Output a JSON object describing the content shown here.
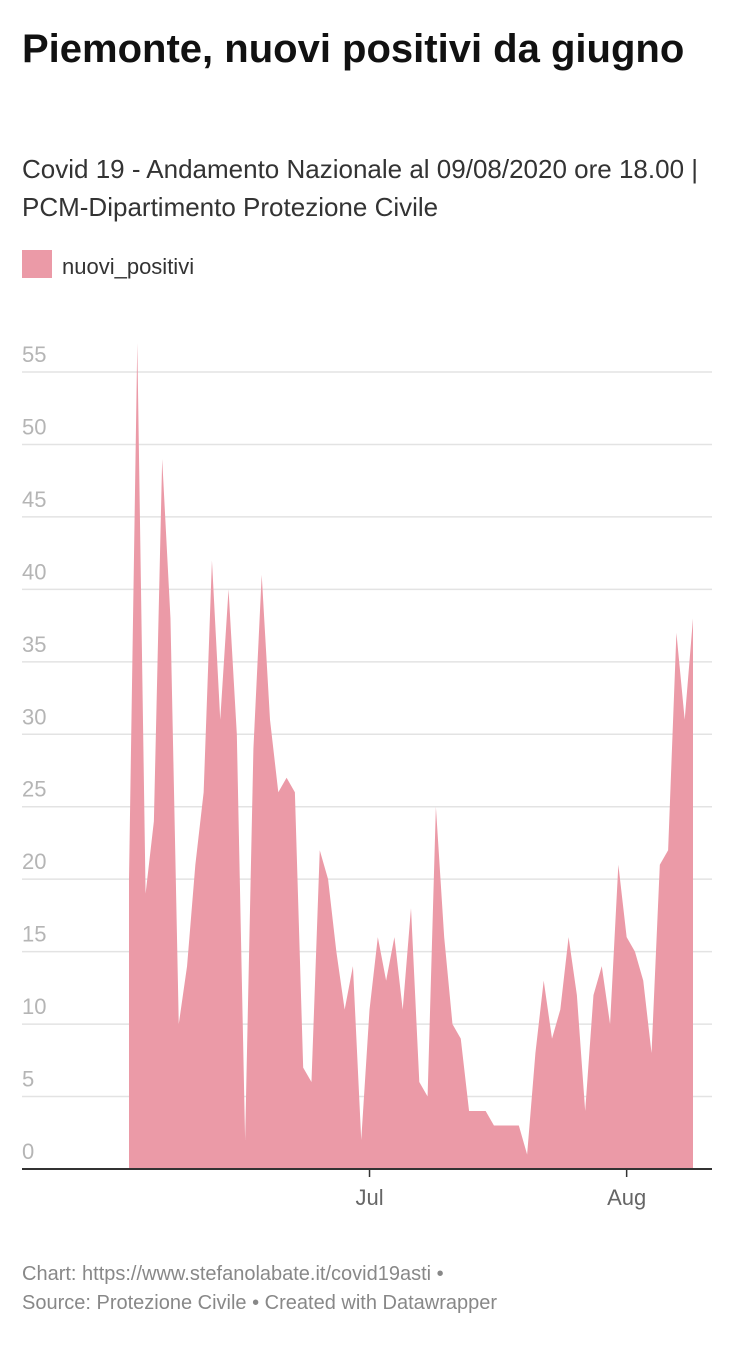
{
  "chart_data": {
    "type": "area",
    "title": "Piemonte, nuovi positivi da giugno",
    "subtitle": "Covid 19 - Andamento Nazionale al 09/08/2020 ore 18.00 | PCM-Dipartimento Protezione Civile",
    "categories": [
      null,
      null,
      null,
      null,
      null,
      null,
      null,
      null,
      null,
      null,
      null,
      null,
      null,
      null,
      null,
      null,
      null,
      null,
      null,
      null,
      null,
      null,
      null,
      null,
      null,
      null,
      null,
      null,
      null,
      "Jul",
      null,
      null,
      null,
      null,
      null,
      null,
      null,
      null,
      null,
      null,
      null,
      null,
      null,
      null,
      null,
      null,
      null,
      null,
      null,
      null,
      null,
      null,
      null,
      null,
      null,
      null,
      null,
      null,
      null,
      null,
      "Aug",
      null,
      null,
      null,
      null,
      null,
      null,
      null,
      null
    ],
    "series": [
      {
        "name": "nuovi_positivi",
        "color": "#eb9aa7",
        "values": [
          20,
          57,
          19,
          24,
          49,
          38,
          10,
          14,
          21,
          26,
          42,
          31,
          40,
          30,
          2,
          29,
          41,
          31,
          26,
          27,
          26,
          7,
          6,
          22,
          20,
          15,
          11,
          14,
          2,
          11,
          16,
          13,
          16,
          11,
          18,
          6,
          5,
          25,
          16,
          10,
          9,
          4,
          4,
          4,
          3,
          3,
          3,
          3,
          1,
          8,
          13,
          9,
          11,
          16,
          12,
          4,
          12,
          14,
          10,
          21,
          16,
          15,
          13,
          8,
          21,
          22,
          37,
          31,
          38
        ]
      }
    ],
    "ylim": [
      0,
      55
    ],
    "yticks": [
      0,
      5,
      10,
      15,
      20,
      25,
      30,
      35,
      40,
      45,
      50,
      55
    ],
    "grid": true,
    "footer": [
      "Chart: https://www.stefanolabate.it/covid19asti •",
      "Source: Protezione Civile • Created with Datawrapper"
    ]
  }
}
